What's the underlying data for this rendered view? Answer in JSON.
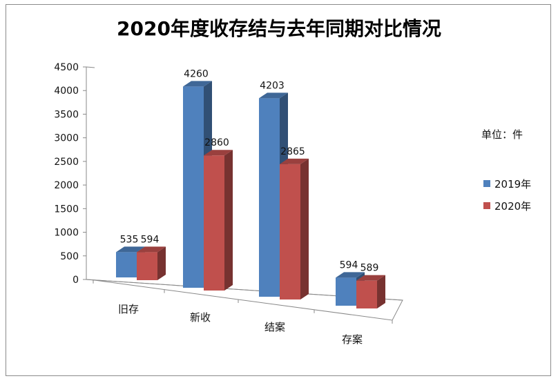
{
  "chart_data": {
    "type": "bar",
    "title": "2020年度收存结与去年同期对比情况",
    "unit_label": "单位：件",
    "categories": [
      "旧存",
      "新收",
      "结案",
      "存案"
    ],
    "series": [
      {
        "name": "2019年",
        "values": [
          535,
          4260,
          4203,
          594
        ],
        "color": "#4f81bd"
      },
      {
        "name": "2020年",
        "values": [
          594,
          2860,
          2865,
          589
        ],
        "color": "#c0504d"
      }
    ],
    "y_ticks": [
      "0",
      "500",
      "1000",
      "1500",
      "2000",
      "2500",
      "3000",
      "3500",
      "4000",
      "4500"
    ],
    "ylim": [
      0,
      4500
    ],
    "legend_position": "right",
    "grid": false
  }
}
